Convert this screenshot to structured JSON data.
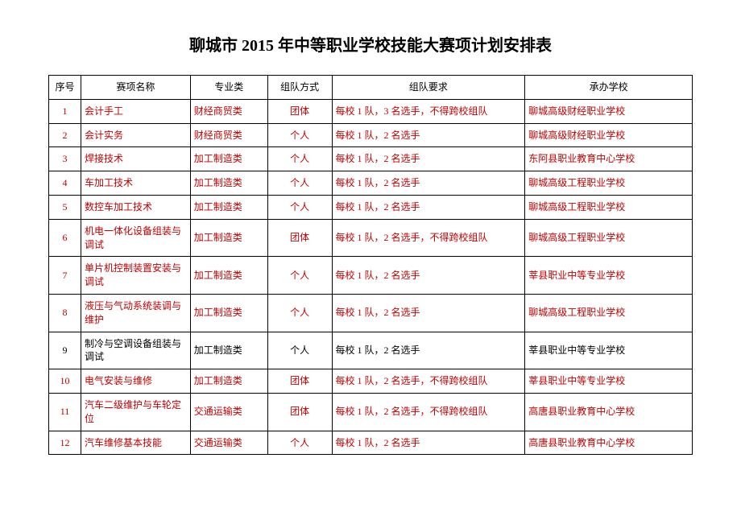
{
  "title": "聊城市 2015 年中等职业学校技能大赛项计划安排表",
  "columns": [
    "序号",
    "赛项名称",
    "专业类",
    "组队方式",
    "组队要求",
    "承办学校"
  ],
  "header_color": "#000000",
  "row_color_default": "#c00000",
  "row_color_black": "#000000",
  "rows": [
    {
      "cells": [
        "1",
        "会计手工",
        "财经商贸类",
        "团体",
        "每校 1 队，3 名选手，不得跨校组队",
        "聊城高级财经职业学校"
      ],
      "color": "#c00000"
    },
    {
      "cells": [
        "2",
        "会计实务",
        "财经商贸类",
        "个人",
        "每校 1 队，2 名选手",
        "聊城高级财经职业学校"
      ],
      "color": "#c00000"
    },
    {
      "cells": [
        "3",
        "焊接技术",
        "加工制造类",
        "个人",
        "每校 1 队，2 名选手",
        "东阿县职业教育中心学校"
      ],
      "color": "#c00000"
    },
    {
      "cells": [
        "4",
        "车加工技术",
        "加工制造类",
        "个人",
        "每校 1 队，2 名选手",
        "聊城高级工程职业学校"
      ],
      "color": "#c00000"
    },
    {
      "cells": [
        "5",
        "数控车加工技术",
        "加工制造类",
        "个人",
        "每校 1 队，2 名选手",
        "聊城高级工程职业学校"
      ],
      "color": "#c00000"
    },
    {
      "cells": [
        "6",
        "机电一体化设备组装与调试",
        "加工制造类",
        "团体",
        "每校 1 队，2 名选手，不得跨校组队",
        "聊城高级工程职业学校"
      ],
      "color": "#c00000"
    },
    {
      "cells": [
        "7",
        "单片机控制装置安装与调试",
        "加工制造类",
        "个人",
        "每校 1 队，2 名选手",
        "莘县职业中等专业学校"
      ],
      "color": "#c00000"
    },
    {
      "cells": [
        "8",
        "液压与气动系统装调与维护",
        "加工制造类",
        "个人",
        "每校 1 队，2 名选手",
        "聊城高级工程职业学校"
      ],
      "color": "#c00000"
    },
    {
      "cells": [
        "9",
        "制冷与空调设备组装与调试",
        "加工制造类",
        "个人",
        "每校 1 队，2 名选手",
        "莘县职业中等专业学校"
      ],
      "color": "#000000"
    },
    {
      "cells": [
        "10",
        "电气安装与维修",
        "加工制造类",
        "团体",
        "每校 1 队，2 名选手，不得跨校组队",
        "莘县职业中等专业学校"
      ],
      "color": "#c00000"
    },
    {
      "cells": [
        "11",
        "汽车二级维护与车轮定位",
        "交通运输类",
        "团体",
        "每校 1 队，2 名选手，不得跨校组队",
        "高唐县职业教育中心学校"
      ],
      "color": "#c00000"
    },
    {
      "cells": [
        "12",
        "汽车维修基本技能",
        "交通运输类",
        "个人",
        "每校 1 队，2 名选手",
        "高唐县职业教育中心学校"
      ],
      "color": "#c00000"
    }
  ]
}
